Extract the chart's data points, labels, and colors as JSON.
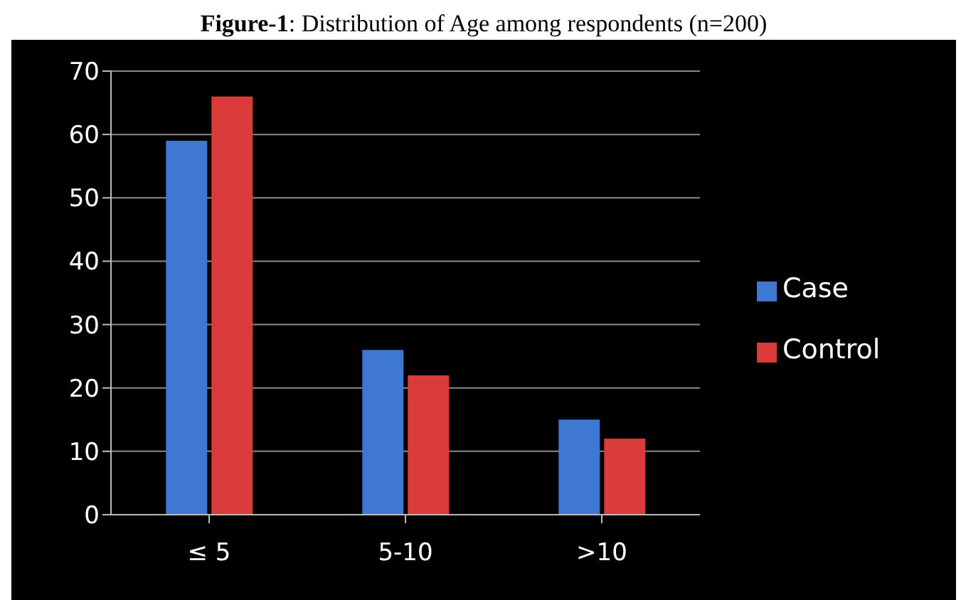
{
  "chart_data": {
    "type": "bar",
    "title": "Figure-1: Distribution of Age among respondents (n=200)",
    "categories": [
      "≤ 5",
      "5-10",
      ">10"
    ],
    "series": [
      {
        "name": "Case",
        "color": "#3f78d2",
        "values": [
          59,
          26,
          15
        ]
      },
      {
        "name": "Control",
        "color": "#d93b3b",
        "values": [
          66,
          22,
          12
        ]
      }
    ],
    "ylim": [
      0,
      70
    ],
    "yticks": [
      0,
      10,
      20,
      30,
      40,
      50,
      60,
      70
    ],
    "grid": "y",
    "legend": "right"
  }
}
